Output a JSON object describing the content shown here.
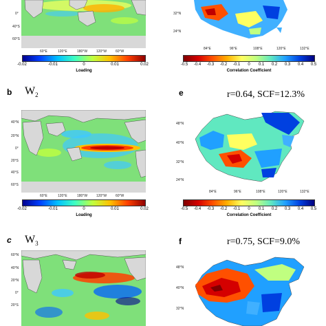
{
  "panels": {
    "a": {
      "lat_labels": [
        "0°",
        "40°S",
        "60°S"
      ],
      "lon_labels": [
        "60°E",
        "120°E",
        "180°W",
        "120°W",
        "60°W"
      ]
    },
    "b": {
      "letter": "b",
      "w_base": "W",
      "w_sub": "2",
      "lat_labels": [
        "40°N",
        "20°N",
        "0°",
        "20°S",
        "40°S",
        "60°S"
      ],
      "lon_labels": [
        "60°E",
        "120°E",
        "180°W",
        "120°W",
        "60°W"
      ]
    },
    "c": {
      "letter": "c",
      "w_base": "W",
      "w_sub": "3",
      "lat_labels": [
        "60°N",
        "40°N",
        "20°N",
        "0°",
        "20°S"
      ]
    },
    "d": {
      "lat_labels": [
        "32°N",
        "24°N"
      ],
      "lon_labels": [
        "84°E",
        "96°E",
        "108°E",
        "120°E",
        "132°E"
      ]
    },
    "e": {
      "letter": "e",
      "stats": "r=0.64, SCF=12.3%",
      "lat_labels": [
        "48°N",
        "40°N",
        "32°N",
        "24°N"
      ],
      "lon_labels": [
        "84°E",
        "96°E",
        "108°E",
        "120°E",
        "132°E"
      ]
    },
    "f": {
      "letter": "f",
      "stats": "r=0.75, SCF=9.0%",
      "lat_labels": [
        "48°N",
        "40°N",
        "32°N"
      ]
    }
  },
  "loading_colorbar": {
    "title": "Loading",
    "ticks": [
      "-0.02",
      "-0.01",
      "0",
      "0.01",
      "0.02"
    ]
  },
  "corr_colorbar": {
    "title": "Correlation Coefficient",
    "ticks": [
      "-0.5",
      "-0.4",
      "-0.3",
      "-0.2",
      "-0.1",
      "0",
      "0.1",
      "0.2",
      "0.3",
      "0.4",
      "0.5"
    ]
  },
  "colors": {
    "loading_gradient": [
      "#00008f",
      "#0040ff",
      "#00c0ff",
      "#40ffc0",
      "#c0ff40",
      "#ffc000",
      "#ff4000",
      "#8f0000"
    ],
    "corr_gradient": [
      "#7f0000",
      "#d40000",
      "#ff5000",
      "#ffb000",
      "#ffff60",
      "#c0ff80",
      "#60e8c0",
      "#20a0ff",
      "#0040e0",
      "#00007f"
    ],
    "ocean_green": "#7fe07a",
    "land_gray": "#d8d8d8"
  }
}
